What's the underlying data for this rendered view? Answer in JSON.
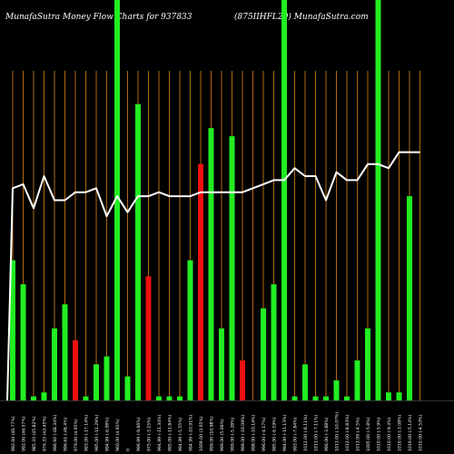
{
  "header": {
    "title": "MunafaSutra  Money Flow  Charts for 937833",
    "subtitle": "(875IIHFL29) MunafaSutra.com"
  },
  "colors": {
    "background": "#000000",
    "up_bar": "#22ee22",
    "down_bar": "#ee1111",
    "grid_line": "#b36a12",
    "price_line": "#ffffff",
    "axis_text": "#ffffff"
  },
  "chart_data": {
    "type": "bar",
    "title": "MunafaSutra  Money Flow  Charts for 937833",
    "subtitle": "(875IIHFL29) MunafaSutra.com",
    "y_range": [
      0,
      100
    ],
    "grid": "vertical",
    "categories": [
      "992.60 (46.77%)",
      "992.00 (46.57%)",
      "985.33 (45.82%)",
      "976.33 (43.45%)",
      "996.92 (-48.34%)",
      "996.61 (-48.4%)",
      "979.00 (4.95%)",
      "993.00 (-17.14%)",
      "995.00 (-11.29%)",
      "994.99 (-6.08%)",
      "960.00 (4.91%)",
      "0",
      "996.99 (-9.66%)",
      "975.00 (-3.15%)",
      "994.99 (-11.34%)",
      "995.00 (-11.84%)",
      "994.99 (-5.55%)",
      "994.99 (-10.91%)",
      "1009.00 (3.05%)",
      "999.00 (10.98%)",
      "999.00 (5.06%)",
      "999.00 (-5.28%)",
      "999.00 (-10.09%)",
      "998.00 (-10.14%)",
      "996.00 (-4.17%)",
      "995.00 (-6.19%)",
      "994.00 (-11.13%)",
      "993.00 (-7.84%)",
      "1012.00 (-8.11%)",
      "1013.00 (-7.11%)",
      "996.00 (-3.88%)",
      "1013.00 (-10.07%)",
      "1012.00 (-8.83%)",
      "1013.99 (-4.5%)",
      "1005.00 (-5.8%)",
      "1010.00 (-5.9%)",
      "1010.00 (-9.4%)",
      "1010.00 (-3.08%)",
      "1019.00 (-5.14%)",
      "1010.00 (-4.53%)"
    ],
    "series": [
      {
        "kind": "money_flow_bars",
        "values": [
          35,
          29,
          1,
          2,
          18,
          24,
          15,
          1,
          9,
          11,
          100,
          6,
          74,
          31,
          1,
          1,
          1,
          35,
          59,
          68,
          18,
          66,
          10,
          0,
          23,
          29,
          100,
          1,
          9,
          1,
          1,
          5,
          1,
          10,
          18,
          100,
          2,
          2,
          51,
          0
        ],
        "colors": [
          "green",
          "green",
          "green",
          "green",
          "green",
          "green",
          "red",
          "green",
          "green",
          "green",
          "green",
          "green",
          "green",
          "red",
          "green",
          "green",
          "green",
          "green",
          "red",
          "green",
          "green",
          "green",
          "red",
          "green",
          "green",
          "green",
          "green",
          "green",
          "green",
          "green",
          "green",
          "green",
          "green",
          "green",
          "green",
          "green",
          "green",
          "green",
          "green",
          "green"
        ]
      },
      {
        "kind": "price_line",
        "values": [
          53,
          54,
          48,
          56,
          50,
          50,
          52,
          52,
          53,
          46,
          51,
          47,
          51,
          51,
          52,
          51,
          51,
          51,
          52,
          52,
          52,
          52,
          52,
          53,
          54,
          55,
          55,
          58,
          56,
          56,
          50,
          57,
          55,
          55,
          59,
          59,
          58,
          62,
          62,
          62
        ]
      }
    ]
  }
}
